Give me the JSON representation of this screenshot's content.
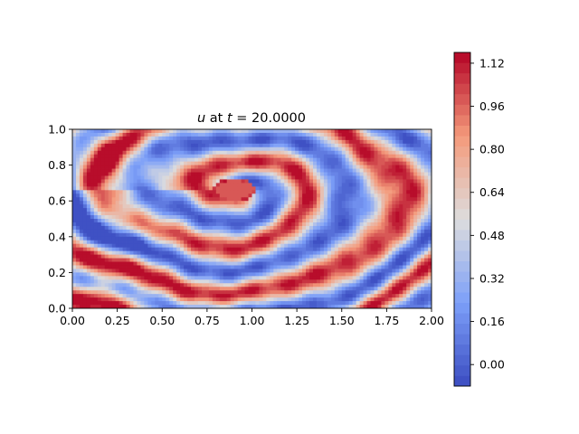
{
  "chart_data": {
    "type": "heatmap",
    "title": {
      "var": "u",
      "mid": " at ",
      "tvar": "t",
      "eq": " = 20.0000"
    },
    "xlabel": "",
    "ylabel": "",
    "xlim": [
      0.0,
      2.0
    ],
    "ylim": [
      0.0,
      1.0
    ],
    "x_ticks": [
      {
        "value": 0.0,
        "label": "0.00"
      },
      {
        "value": 0.25,
        "label": "0.25"
      },
      {
        "value": 0.5,
        "label": "0.50"
      },
      {
        "value": 0.75,
        "label": "0.75"
      },
      {
        "value": 1.0,
        "label": "1.00"
      },
      {
        "value": 1.25,
        "label": "1.25"
      },
      {
        "value": 1.5,
        "label": "1.50"
      },
      {
        "value": 1.75,
        "label": "1.75"
      },
      {
        "value": 2.0,
        "label": "2.00"
      }
    ],
    "y_ticks": [
      {
        "value": 0.0,
        "label": "0.0"
      },
      {
        "value": 0.2,
        "label": "0.2"
      },
      {
        "value": 0.4,
        "label": "0.4"
      },
      {
        "value": 0.6,
        "label": "0.6"
      },
      {
        "value": 0.8,
        "label": "0.8"
      },
      {
        "value": 1.0,
        "label": "1.0"
      }
    ],
    "colorbar": {
      "colormap": "coolwarm",
      "range": [
        -0.08,
        1.16
      ],
      "levels": 32,
      "ticks": [
        {
          "value": 0.0,
          "label": "0.00"
        },
        {
          "value": 0.16,
          "label": "0.16"
        },
        {
          "value": 0.32,
          "label": "0.32"
        },
        {
          "value": 0.48,
          "label": "0.48"
        },
        {
          "value": 0.64,
          "label": "0.64"
        },
        {
          "value": 0.8,
          "label": "0.80"
        },
        {
          "value": 0.96,
          "label": "0.96"
        },
        {
          "value": 1.12,
          "label": "1.12"
        }
      ]
    },
    "field": {
      "description_of_source": "filled contour of u(x,y) at t = 20.0000",
      "approximation": {
        "center": [
          0.9,
          0.66
        ],
        "aspect": 0.55,
        "wavenumber": 28,
        "baseline": 0.55,
        "amplitude": 0.55
      }
    }
  }
}
